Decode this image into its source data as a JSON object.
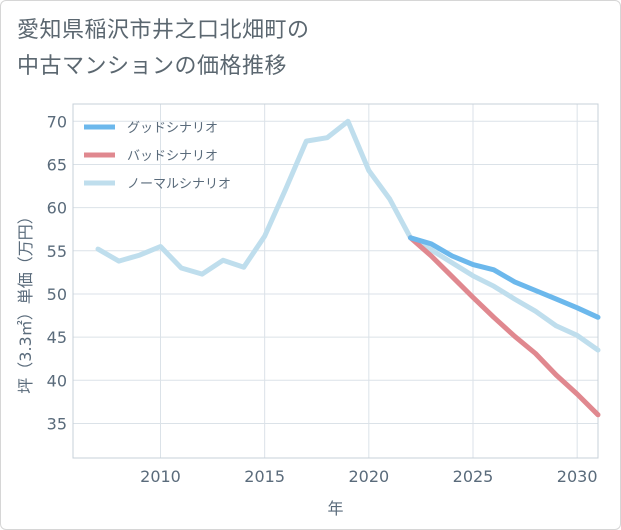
{
  "title_line1": "愛知県稲沢市井之口北畑町の",
  "title_line2": "中古マンションの価格推移",
  "chart_data": {
    "type": "line",
    "xlabel": "年",
    "ylabel": "坪（3.3㎡）単価（万円）",
    "xlim": [
      2005.8,
      2031
    ],
    "ylim": [
      31,
      72
    ],
    "xticks": [
      2010,
      2015,
      2020,
      2025,
      2030
    ],
    "yticks": [
      35,
      40,
      45,
      50,
      55,
      60,
      65,
      70
    ],
    "grid": true,
    "legend_position": "top-left",
    "series": [
      {
        "name": "グッドシナリオ",
        "color": "#6cb8ec",
        "x": [
          2022,
          2023,
          2024,
          2025,
          2026,
          2027,
          2028,
          2029,
          2030,
          2031
        ],
        "y": [
          56.5,
          55.8,
          54.4,
          53.4,
          52.8,
          51.4,
          50.4,
          49.4,
          48.4,
          47.3
        ]
      },
      {
        "name": "バッドシナリオ",
        "color": "#e0888f",
        "x": [
          2022,
          2023,
          2024,
          2025,
          2026,
          2027,
          2028,
          2029,
          2030,
          2031
        ],
        "y": [
          56.5,
          54.4,
          52.0,
          49.6,
          47.3,
          45.1,
          43.1,
          40.6,
          38.4,
          36.0
        ]
      },
      {
        "name": "ノーマルシナリオ",
        "color": "#bfdeed",
        "x": [
          2007,
          2008,
          2009,
          2010,
          2011,
          2012,
          2013,
          2014,
          2015,
          2016,
          2017,
          2018,
          2019,
          2020,
          2021,
          2022,
          2023,
          2024,
          2025,
          2026,
          2027,
          2028,
          2029,
          2030,
          2031
        ],
        "y": [
          55.2,
          53.8,
          54.5,
          55.5,
          53.0,
          52.3,
          53.9,
          53.1,
          56.7,
          62.1,
          67.7,
          68.1,
          70.0,
          64.3,
          61.0,
          56.5,
          55.1,
          53.6,
          52.1,
          50.9,
          49.4,
          48.0,
          46.3,
          45.2,
          43.5
        ]
      }
    ]
  }
}
